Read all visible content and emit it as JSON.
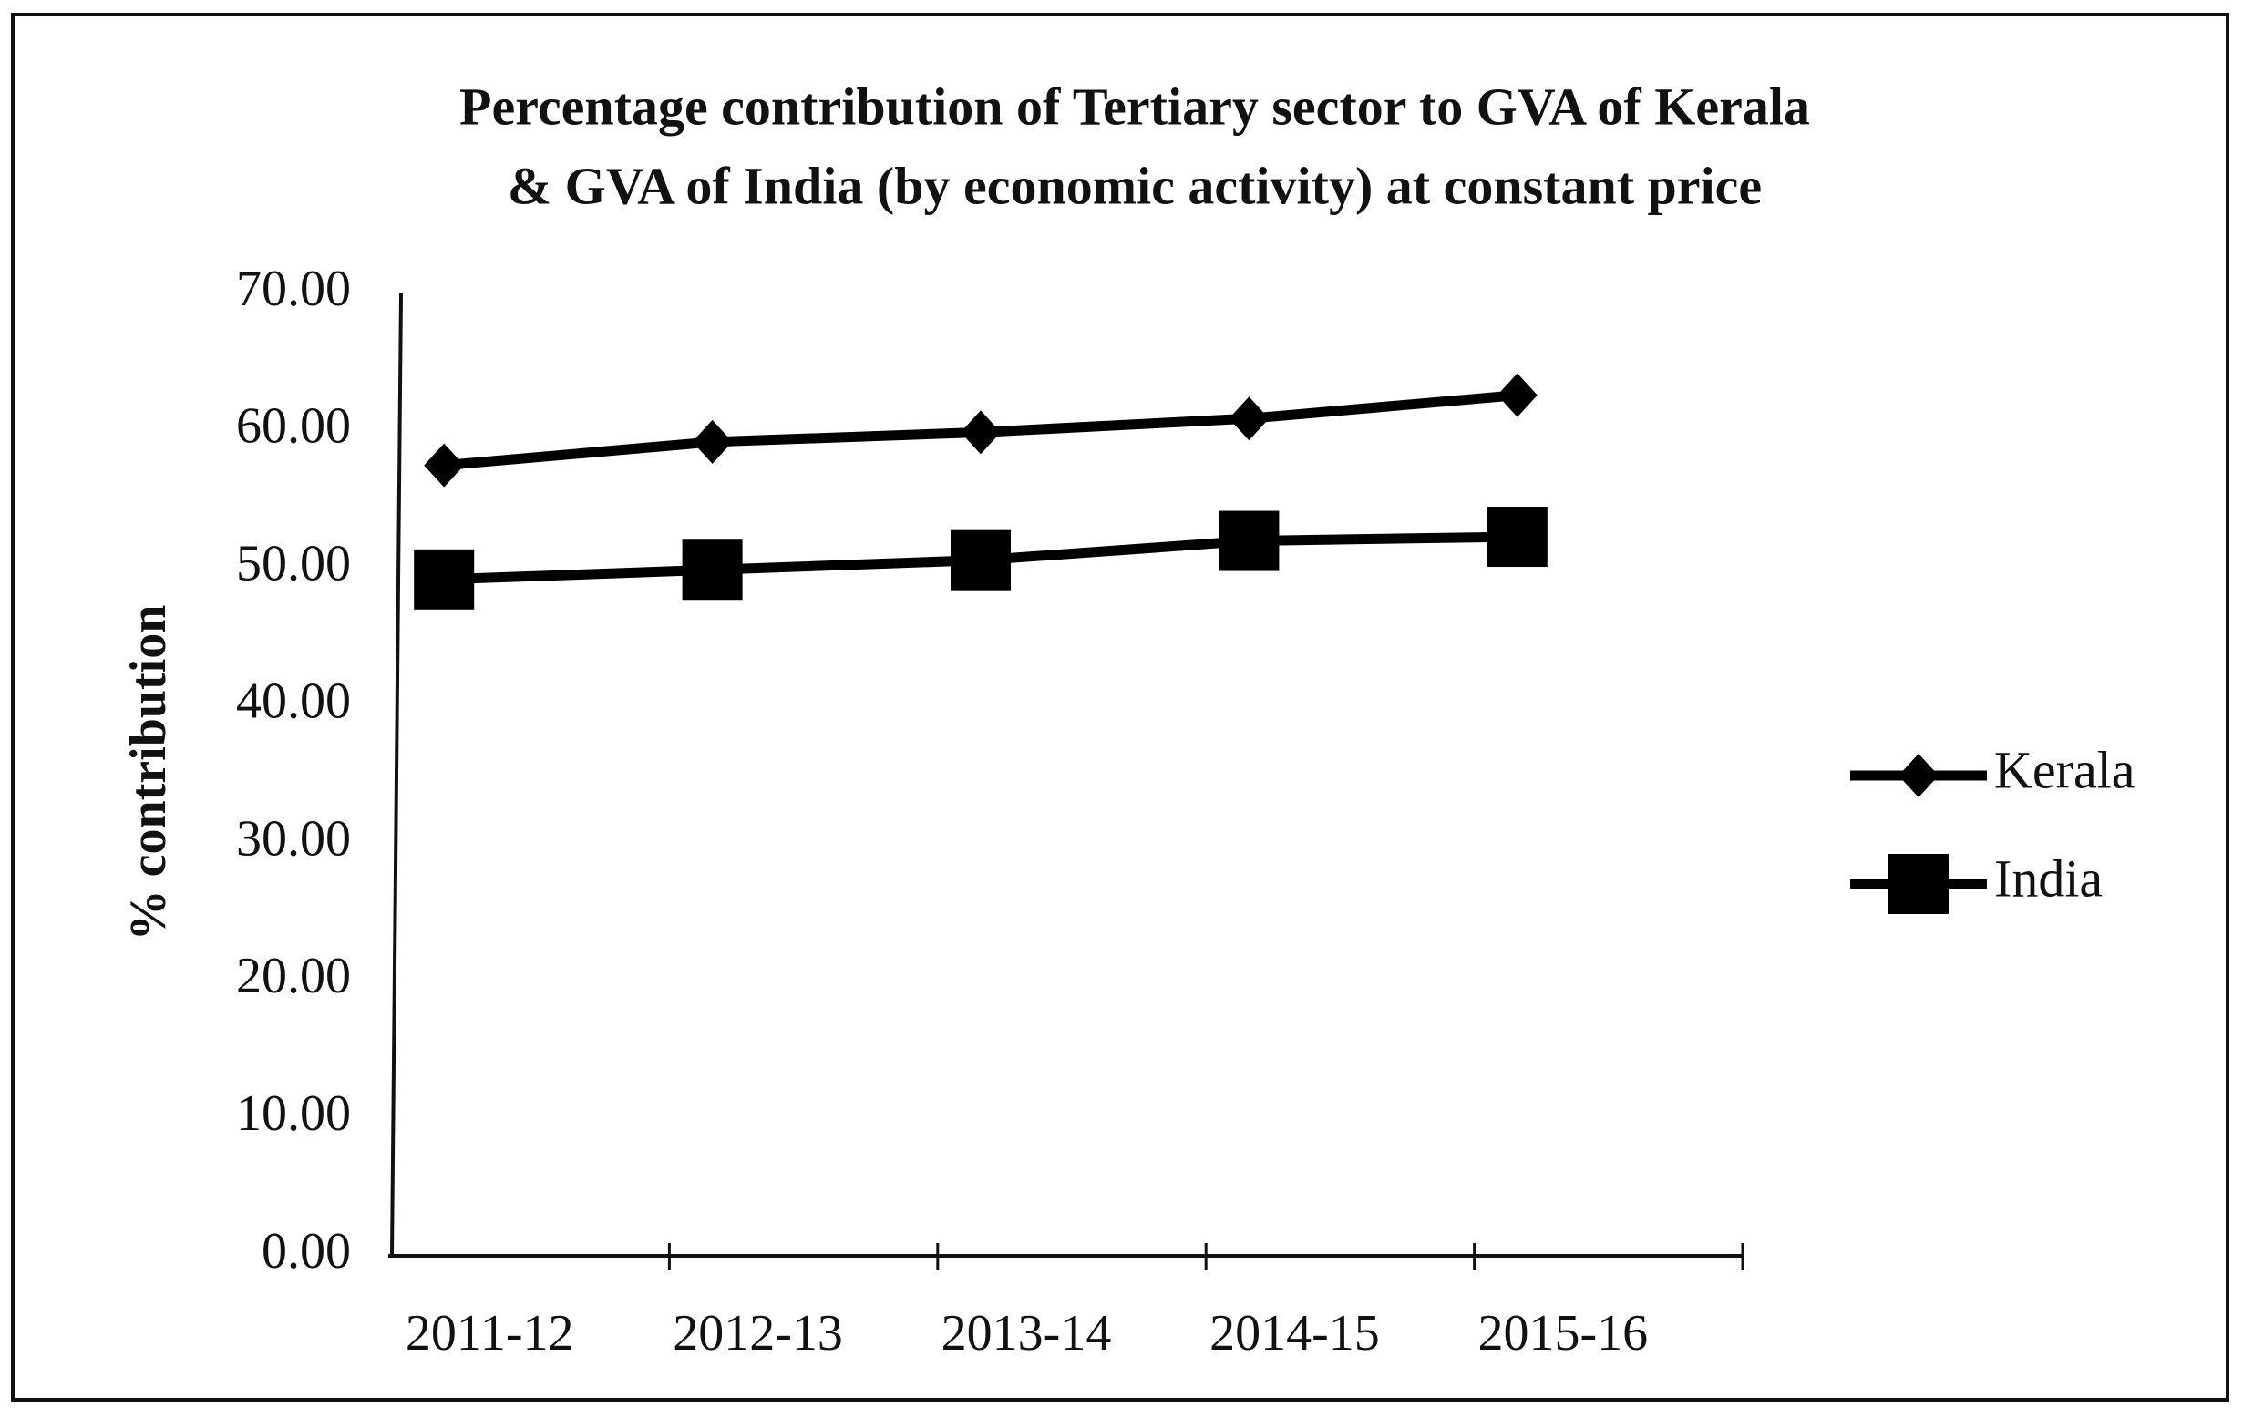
{
  "chart_data": {
    "type": "line",
    "title": [
      "Percentage contribution of Tertiary sector to GVA of Kerala",
      "& GVA of India (by economic activity) at constant price"
    ],
    "y_label": "% contribution",
    "categories": [
      "2011-12",
      "2012-13",
      "2013-14",
      "2014-15",
      "2015-16"
    ],
    "series": [
      {
        "name": "Kerala",
        "color": "#000000",
        "marker": "diamond",
        "values": [
          57.5,
          59.2,
          59.9,
          60.9,
          62.6
        ]
      },
      {
        "name": "India",
        "color": "#000000",
        "marker": "square",
        "values": [
          49.2,
          49.9,
          50.6,
          52.0,
          52.3
        ]
      }
    ],
    "ylim": [
      0,
      70
    ],
    "yticks": [
      {
        "value": 0,
        "label": "0.00"
      },
      {
        "value": 10,
        "label": "10.00"
      },
      {
        "value": 20,
        "label": "20.00"
      },
      {
        "value": 30,
        "label": "30.00"
      },
      {
        "value": 40,
        "label": "40.00"
      },
      {
        "value": 50,
        "label": "50.00"
      },
      {
        "value": 60,
        "label": "60.00"
      },
      {
        "value": 70,
        "label": "70.00"
      }
    ],
    "grid": false,
    "legend": "right"
  }
}
